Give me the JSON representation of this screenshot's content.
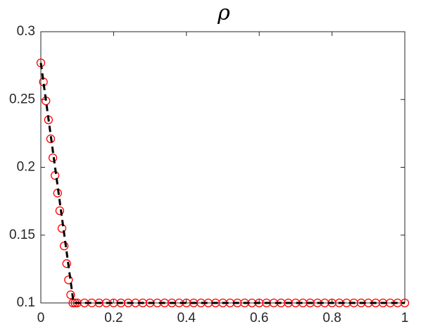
{
  "chart_data": {
    "type": "scatter",
    "title": "ρ",
    "xlim": [
      0,
      1
    ],
    "xticks": [
      0,
      0.2,
      0.4,
      0.6,
      0.8,
      1
    ],
    "ylim": [
      0.1,
      0.3
    ],
    "yticks": [
      0.1,
      0.15,
      0.2,
      0.25,
      0.3
    ],
    "grid": false,
    "box": true,
    "series": [
      {
        "color": "#ff0000",
        "marker": "circle",
        "x": [
          0,
          0.007,
          0.014,
          0.021,
          0.027,
          0.033,
          0.039,
          0.046,
          0.052,
          0.058,
          0.064,
          0.071,
          0.076,
          0.082,
          0.088,
          0.094,
          0.1,
          0.12,
          0.14,
          0.16,
          0.18,
          0.2,
          0.22,
          0.24,
          0.26,
          0.28,
          0.3,
          0.32,
          0.34,
          0.36,
          0.38,
          0.4,
          0.42,
          0.44,
          0.46,
          0.48,
          0.5,
          0.52,
          0.54,
          0.56,
          0.58,
          0.6,
          0.62,
          0.64,
          0.66,
          0.68,
          0.7,
          0.72,
          0.74,
          0.76,
          0.78,
          0.8,
          0.82,
          0.84,
          0.86,
          0.88,
          0.9,
          0.92,
          0.94,
          0.96,
          0.98,
          1
        ],
        "values": [
          0.277,
          0.263,
          0.249,
          0.235,
          0.221,
          0.207,
          0.194,
          0.181,
          0.168,
          0.155,
          0.142,
          0.129,
          0.117,
          0.106,
          0.1,
          0.1,
          0.1,
          0.1,
          0.1,
          0.1,
          0.1,
          0.1,
          0.1,
          0.1,
          0.1,
          0.1,
          0.1,
          0.1,
          0.1,
          0.1,
          0.1,
          0.1,
          0.1,
          0.1,
          0.1,
          0.1,
          0.1,
          0.1,
          0.1,
          0.1,
          0.1,
          0.1,
          0.1,
          0.1,
          0.1,
          0.1,
          0.1,
          0.1,
          0.1,
          0.1,
          0.1,
          0.1,
          0.1,
          0.1,
          0.1,
          0.1,
          0.1,
          0.1,
          0.1,
          0.1,
          0.1,
          0.1
        ]
      },
      {
        "color": "#000000",
        "line_style": "dashed",
        "x": [
          0,
          0.09,
          1
        ],
        "values": [
          0.277,
          0.1,
          0.1
        ]
      }
    ]
  }
}
